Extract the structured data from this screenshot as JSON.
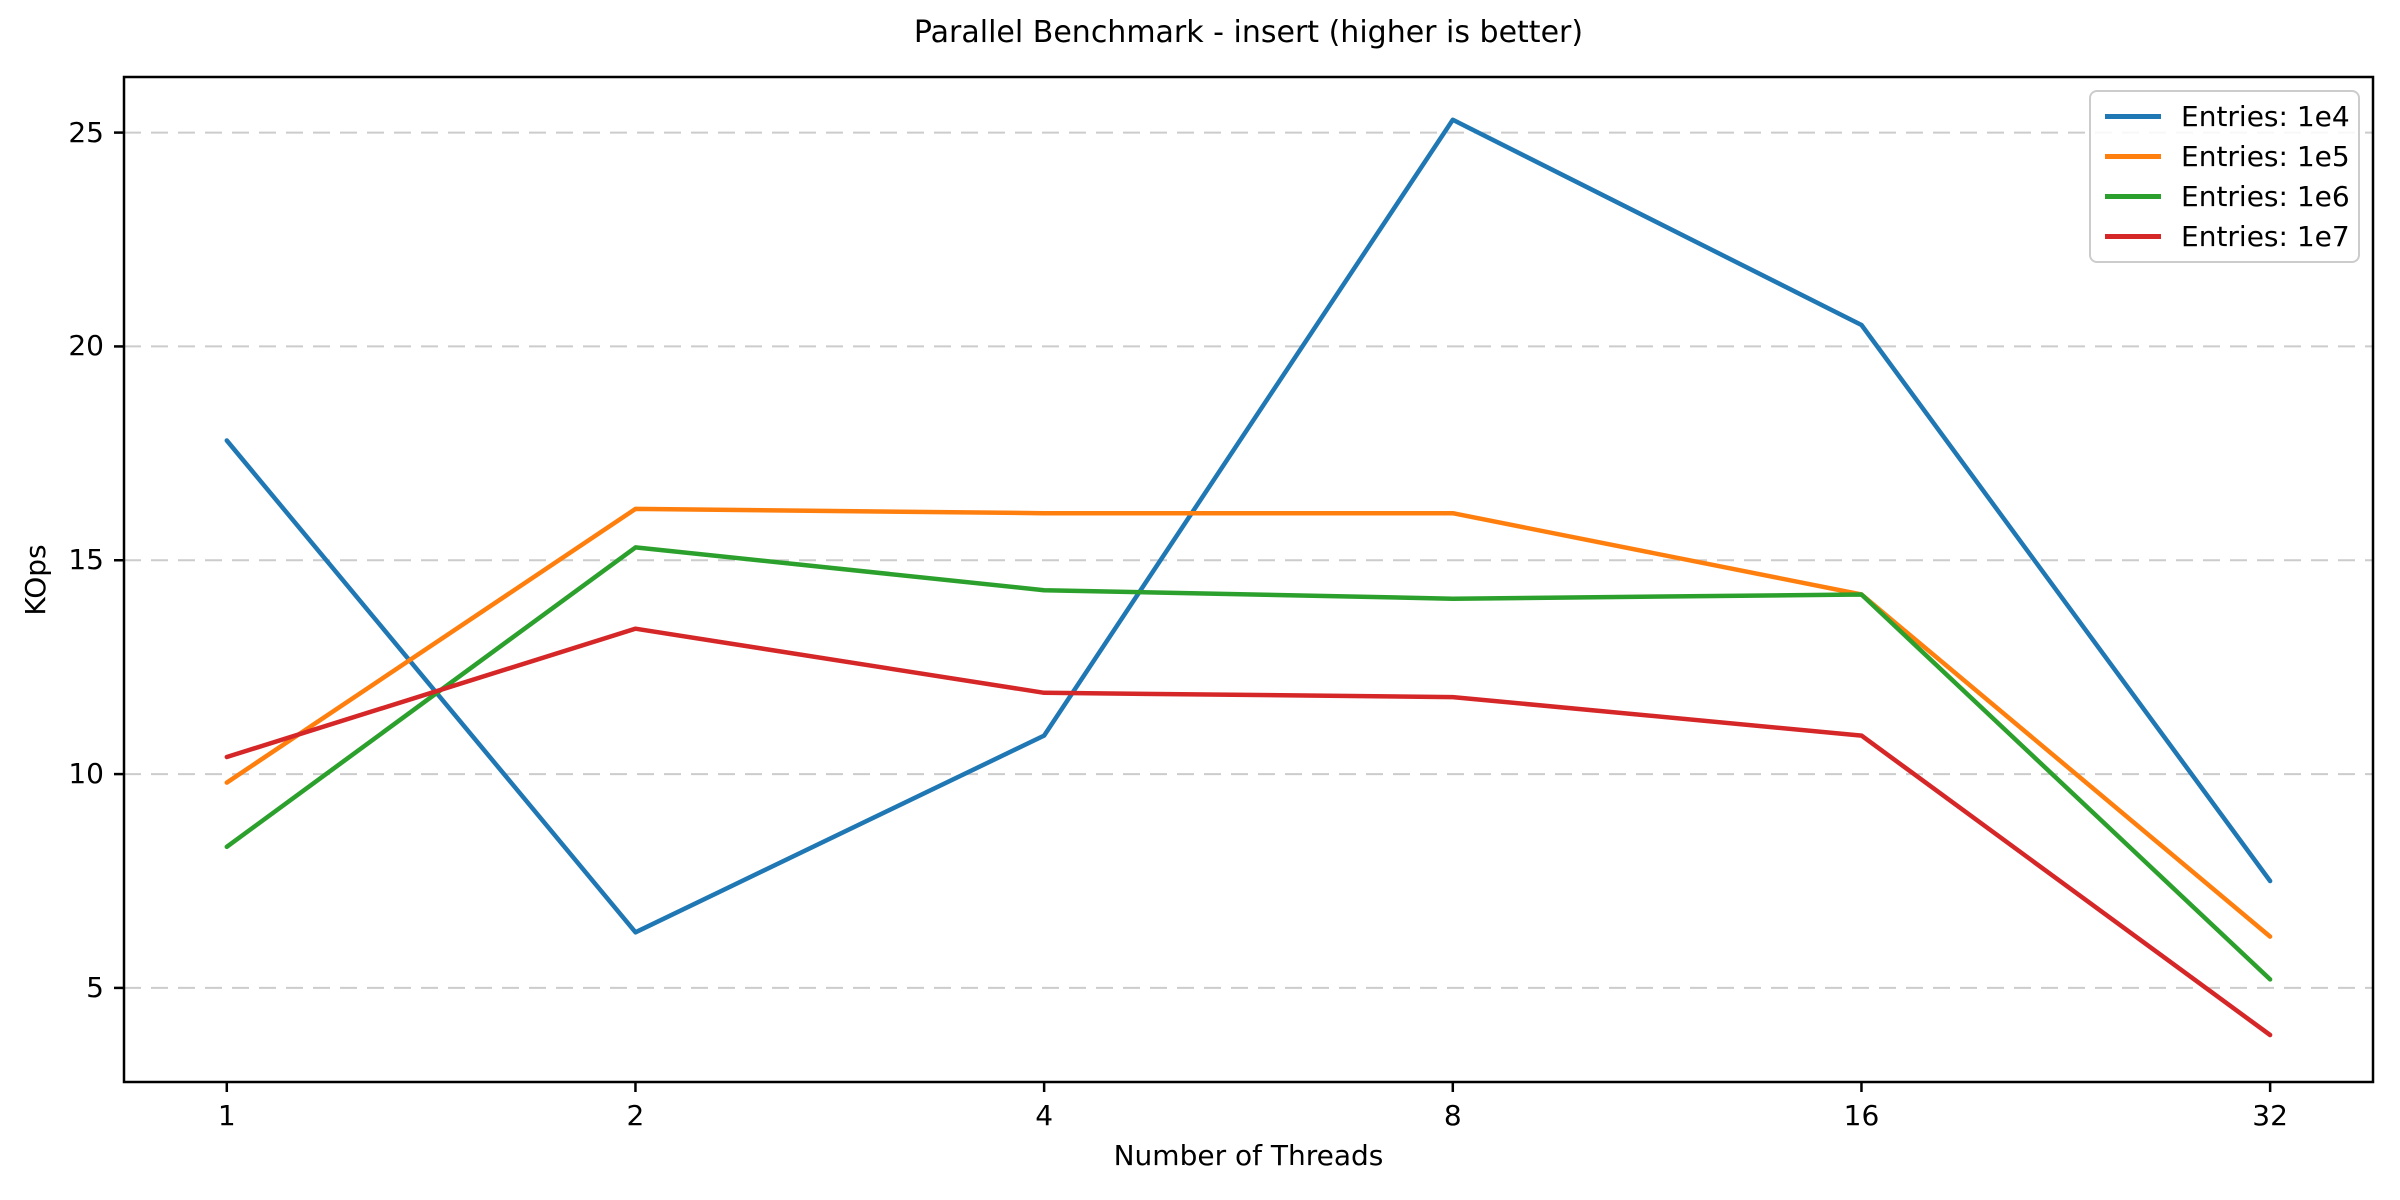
{
  "chart_data": {
    "type": "line",
    "title": "Parallel Benchmark - insert (higher is better)",
    "xlabel": "Number of Threads",
    "ylabel": "KOps",
    "x": [
      1,
      2,
      4,
      8,
      16,
      32
    ],
    "x_tick_labels": [
      "1",
      "2",
      "4",
      "8",
      "16",
      "32"
    ],
    "x_scale": "log2",
    "xlim": [
      0.84,
      38.1
    ],
    "y_ticks": [
      5,
      10,
      15,
      20,
      25
    ],
    "y_tick_labels": [
      "5",
      "10",
      "15",
      "20",
      "25"
    ],
    "ylim": [
      2.8,
      26.3
    ],
    "grid": "horizontal-dashed",
    "legend_position": "upper-right",
    "series": [
      {
        "name": "Entries: 1e4",
        "color": "#1f77b4",
        "values": [
          17.8,
          6.3,
          10.9,
          25.3,
          20.5,
          7.5
        ]
      },
      {
        "name": "Entries: 1e5",
        "color": "#ff7f0e",
        "values": [
          9.8,
          16.2,
          16.1,
          16.1,
          14.2,
          6.2
        ]
      },
      {
        "name": "Entries: 1e6",
        "color": "#2ca02c",
        "values": [
          8.3,
          15.3,
          14.3,
          14.1,
          14.2,
          5.2
        ]
      },
      {
        "name": "Entries: 1e7",
        "color": "#d62728",
        "values": [
          10.4,
          13.4,
          11.9,
          11.8,
          10.9,
          3.9
        ]
      }
    ],
    "colors": {
      "background": "#ffffff",
      "spine": "#000000",
      "grid": "#cccccc",
      "text": "#000000"
    }
  }
}
